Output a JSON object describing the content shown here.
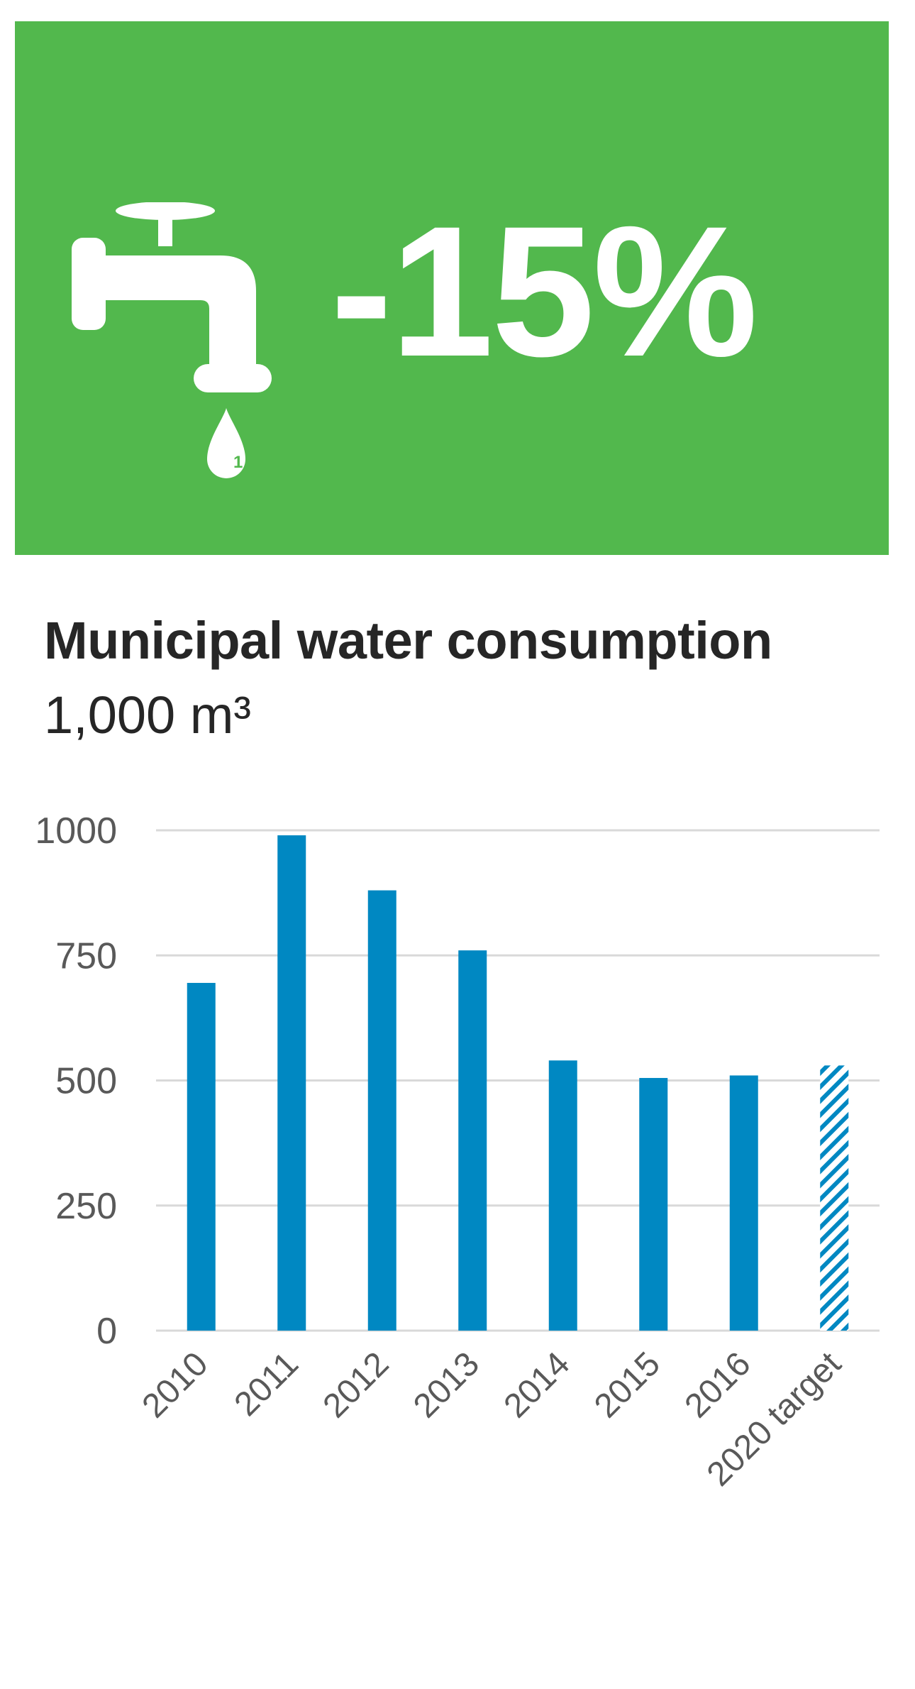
{
  "banner": {
    "icon": "water-tap-icon",
    "drop_label": "1",
    "headline": "-15%",
    "background_color": "#52b84d"
  },
  "chart_data": {
    "type": "bar",
    "title": "Municipal water consumption",
    "unit": "1,000 m³",
    "categories": [
      "2010",
      "2011",
      "2012",
      "2013",
      "2014",
      "2015",
      "2016",
      "2020 target"
    ],
    "values": [
      695,
      990,
      880,
      760,
      540,
      505,
      510,
      530
    ],
    "target_flags": [
      false,
      false,
      false,
      false,
      false,
      false,
      false,
      true
    ],
    "yticks": [
      0,
      250,
      500,
      750,
      1000
    ],
    "ylim": [
      0,
      1000
    ],
    "bar_color": "#0088c2",
    "grid": true,
    "xlabel": "",
    "ylabel": ""
  }
}
